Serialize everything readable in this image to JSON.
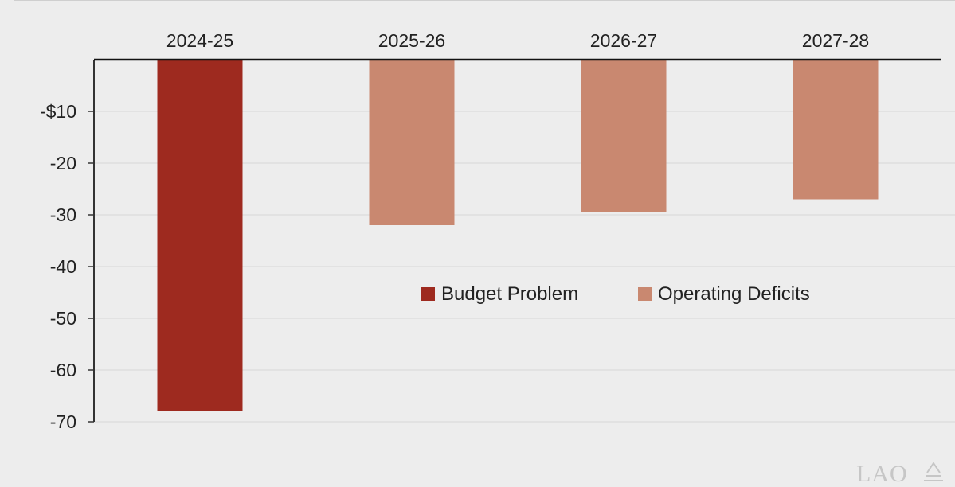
{
  "chart_data": {
    "type": "bar",
    "categories": [
      "2024-25",
      "2025-26",
      "2026-27",
      "2027-28"
    ],
    "series": [
      {
        "name": "Budget Problem",
        "color": "#9e2a1f",
        "values": [
          -68,
          null,
          null,
          null
        ]
      },
      {
        "name": "Operating Deficits",
        "color": "#c98870",
        "values": [
          null,
          -32,
          -29.5,
          -27
        ]
      }
    ],
    "ylim": [
      -70,
      0
    ],
    "yticks": [
      -10,
      -20,
      -30,
      -40,
      -50,
      -60,
      -70
    ],
    "ytick_labels": [
      "-$10",
      "-20",
      "-30",
      "-40",
      "-50",
      "-60",
      "-70"
    ],
    "xlabel": "",
    "ylabel": "",
    "grid": true,
    "legend_position": "center-right",
    "category_axis_position": "top"
  },
  "watermark": "LAO"
}
